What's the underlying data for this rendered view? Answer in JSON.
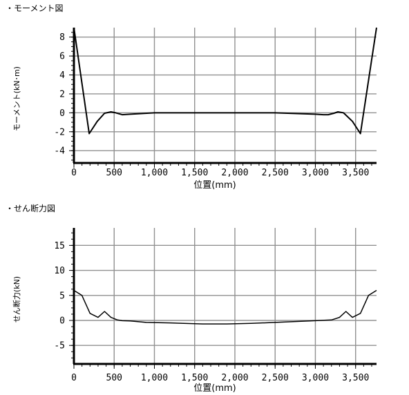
{
  "chart_data": [
    {
      "type": "line",
      "title": "・モーメント図",
      "xlabel": "位置(mm)",
      "ylabel": "モーメント(kN･m)",
      "xlim": [
        0,
        3760
      ],
      "ylim": [
        -5.3,
        9
      ],
      "x_ticks": [
        0,
        500,
        1000,
        1500,
        2000,
        2500,
        3000,
        3500
      ],
      "x_tick_labels": [
        "0",
        "500",
        "1,000",
        "1,500",
        "2,000",
        "2,500",
        "3,000",
        "3,500"
      ],
      "y_ticks": [
        -4,
        -2,
        0,
        2,
        4,
        6,
        8
      ],
      "y_tick_labels": [
        "-4",
        "-2",
        "0",
        "2",
        "4",
        "6",
        "8"
      ],
      "grid": true,
      "series": [
        {
          "x": [
            0,
            190,
            290,
            380,
            460,
            520,
            600,
            700,
            1000,
            1500,
            2000,
            2500,
            3000,
            3100,
            3160,
            3230,
            3280,
            3350,
            3460,
            3560,
            3760
          ],
          "y": [
            9.0,
            -2.2,
            -0.9,
            -0.05,
            0.1,
            0.0,
            -0.2,
            -0.15,
            0.0,
            0.0,
            0.0,
            0.0,
            -0.15,
            -0.2,
            -0.2,
            -0.05,
            0.1,
            0.0,
            -0.9,
            -2.2,
            9.0
          ]
        }
      ]
    },
    {
      "type": "line",
      "title": "・せん断力図",
      "xlabel": "位置(mm)",
      "ylabel": "せん断力(kN)",
      "xlim": [
        0,
        3760
      ],
      "ylim": [
        -8.7,
        18.5
      ],
      "x_ticks": [
        0,
        500,
        1000,
        1500,
        2000,
        2500,
        3000,
        3500
      ],
      "x_tick_labels": [
        "0",
        "500",
        "1,000",
        "1,500",
        "2,000",
        "2,500",
        "3,000",
        "3,500"
      ],
      "y_ticks": [
        -5,
        0,
        5,
        10,
        15
      ],
      "y_tick_labels": [
        "-5",
        "0",
        "5",
        "10",
        "15"
      ],
      "grid": true,
      "series": [
        {
          "x": [
            0,
            100,
            200,
            300,
            380,
            460,
            540,
            600,
            700,
            900,
            1200,
            1600,
            1900,
            2200,
            2500,
            2800,
            3000,
            3200,
            3300,
            3380,
            3460,
            3560,
            3660,
            3760
          ],
          "y": [
            6.0,
            5.0,
            1.4,
            0.6,
            1.8,
            0.6,
            0.1,
            -0.05,
            -0.1,
            -0.4,
            -0.5,
            -0.7,
            -0.7,
            -0.6,
            -0.4,
            -0.2,
            -0.05,
            0.1,
            0.6,
            1.8,
            0.6,
            1.4,
            5.0,
            6.0
          ]
        }
      ]
    }
  ]
}
